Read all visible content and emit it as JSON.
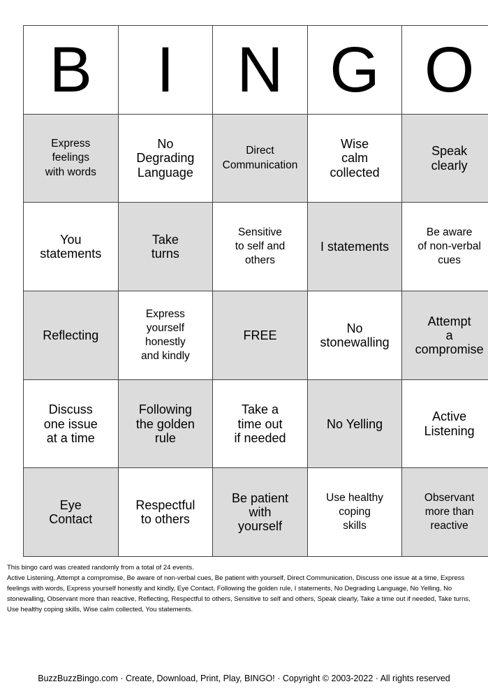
{
  "header": [
    "B",
    "I",
    "N",
    "G",
    "O"
  ],
  "cells": [
    [
      {
        "t": "Express\nfeelings\nwith words",
        "s": "sm"
      },
      {
        "t": "No\nDegrading\nLanguage",
        "s": "lg"
      },
      {
        "t": "Direct\nCommunication",
        "s": "sm"
      },
      {
        "t": "Wise\ncalm\ncollected",
        "s": "lg"
      },
      {
        "t": "Speak\nclearly",
        "s": "lg"
      }
    ],
    [
      {
        "t": "You\nstatements",
        "s": "lg"
      },
      {
        "t": "Take\nturns",
        "s": "lg"
      },
      {
        "t": "Sensitive\nto self and\nothers",
        "s": "sm"
      },
      {
        "t": "I statements",
        "s": "lg"
      },
      {
        "t": "Be aware\nof non-verbal\ncues",
        "s": "sm"
      }
    ],
    [
      {
        "t": "Reflecting",
        "s": "lg"
      },
      {
        "t": "Express\nyourself\nhonestly\nand kindly",
        "s": "sm"
      },
      {
        "t": "FREE",
        "s": "lg"
      },
      {
        "t": "No\nstonewalling",
        "s": "lg"
      },
      {
        "t": "Attempt\na\ncompromise",
        "s": "lg"
      }
    ],
    [
      {
        "t": "Discuss\none issue\nat a time",
        "s": "lg"
      },
      {
        "t": "Following\nthe golden\nrule",
        "s": "lg"
      },
      {
        "t": "Take a\ntime out\nif needed",
        "s": "lg"
      },
      {
        "t": "No Yelling",
        "s": "lg"
      },
      {
        "t": "Active\nListening",
        "s": "lg"
      }
    ],
    [
      {
        "t": "Eye\nContact",
        "s": "lg"
      },
      {
        "t": "Respectful\nto others",
        "s": "lg"
      },
      {
        "t": "Be patient\nwith\nyourself",
        "s": "lg"
      },
      {
        "t": "Use healthy\ncoping\nskills",
        "s": "sm"
      },
      {
        "t": "Observant\nmore than\nreactive",
        "s": "sm"
      }
    ]
  ],
  "info": {
    "line1": "This bingo card was created randomly from a total of 24 events.",
    "events": "Active Listening, Attempt a compromise, Be aware of non-verbal cues, Be patient with yourself, Direct Communication, Discuss one issue at a time, Express feelings with words, Express yourself honestly and kindly, Eye Contact, Following the golden rule, I statements, No Degrading Language, No Yelling, No stonewalling, Observant more than reactive, Reflecting, Respectful to others, Sensitive to self and others, Speak clearly, Take a time out if needed, Take turns, Use healthy coping skills, Wise  calm  collected, You statements."
  },
  "footer": "BuzzBuzzBingo.com · Create, Download, Print, Play, BINGO! · Copyright © 2003-2022 · All rights reserved",
  "colors": {
    "shaded": "#dcdcdc",
    "plain": "#ffffff",
    "border": "#444444"
  }
}
